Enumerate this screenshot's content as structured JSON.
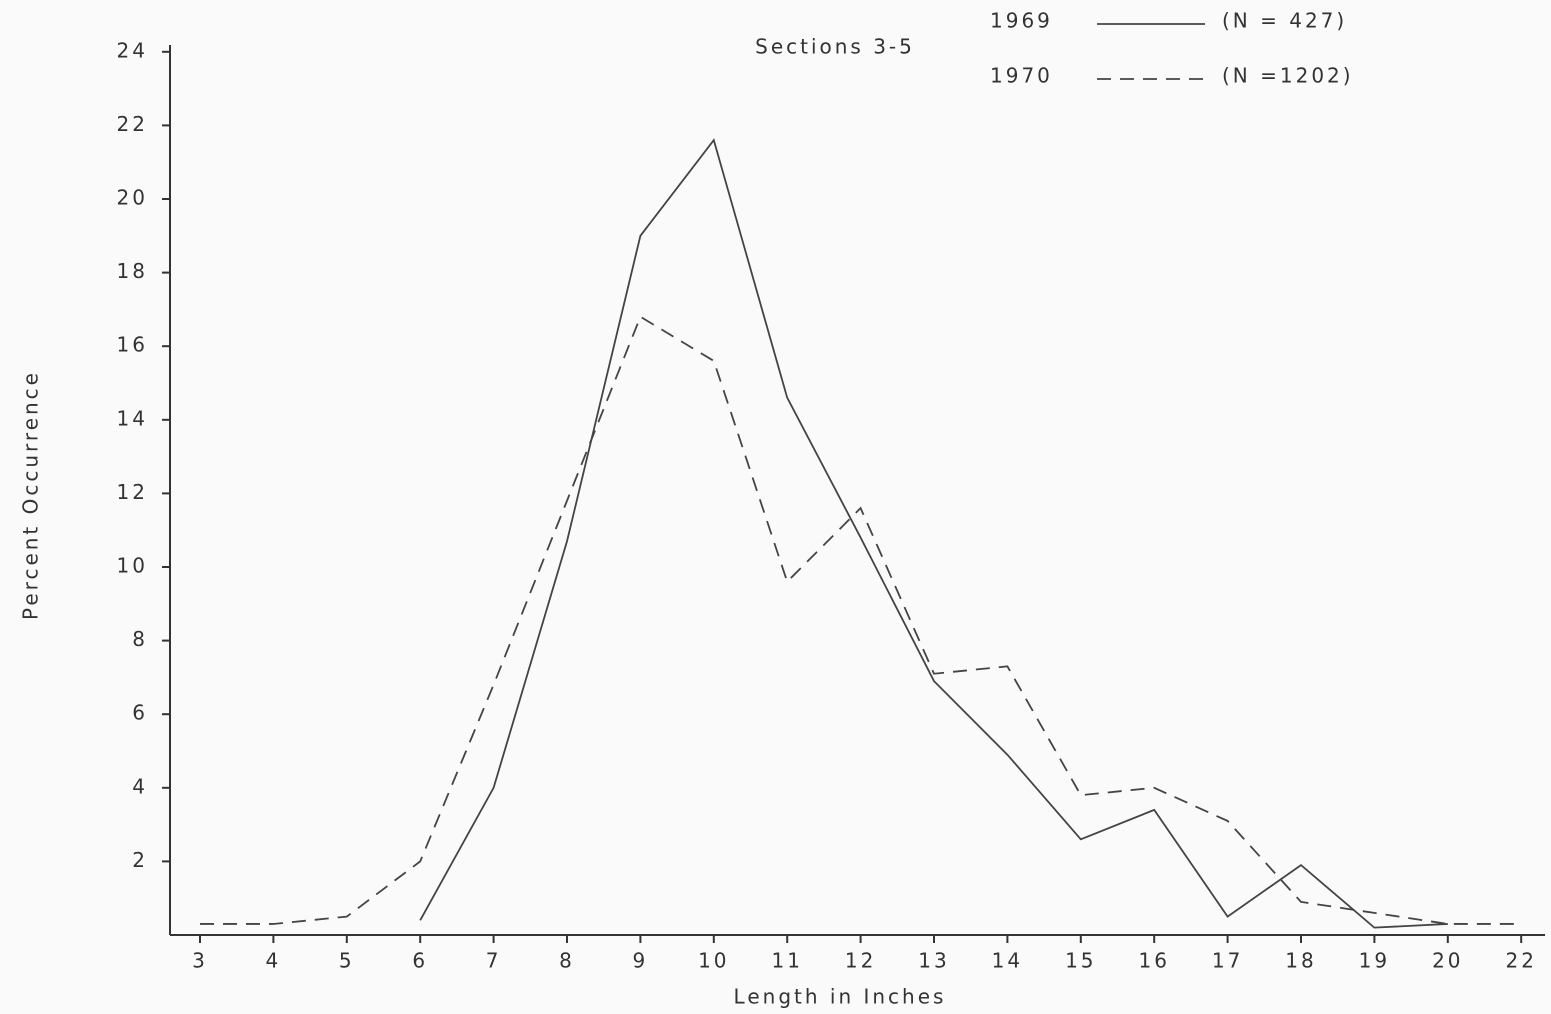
{
  "chart_data": {
    "type": "line",
    "title": "Sections 3-5",
    "x_label": "Length in Inches",
    "y_label": "Percent Occurrence",
    "categories": [
      "3",
      "4",
      "5",
      "6",
      "7",
      "8",
      "9",
      "10",
      "11",
      "12",
      "13",
      "14",
      "15",
      "16",
      "17",
      "18",
      "19",
      "20",
      "22"
    ],
    "series": [
      {
        "name": "1969",
        "n_label": "(N = 427)",
        "color": "#444444",
        "dash": "solid",
        "values": [
          null,
          null,
          null,
          0.4,
          4.0,
          10.7,
          19.0,
          21.6,
          14.6,
          10.8,
          6.9,
          4.9,
          2.6,
          3.4,
          0.5,
          1.9,
          0.2,
          0.3,
          null
        ]
      },
      {
        "name": "1970",
        "n_label": "(N =1202)",
        "color": "#444444",
        "dash": "dashed",
        "values": [
          0.3,
          0.3,
          0.5,
          2.0,
          6.8,
          11.8,
          16.8,
          15.6,
          9.6,
          11.6,
          7.1,
          7.3,
          3.8,
          4.0,
          3.1,
          0.9,
          0.6,
          0.3,
          0.3
        ]
      }
    ],
    "ylim": [
      0,
      24
    ],
    "yticks": [
      2,
      4,
      6,
      8,
      10,
      12,
      14,
      16,
      18,
      20,
      22,
      24
    ],
    "grid": false
  }
}
